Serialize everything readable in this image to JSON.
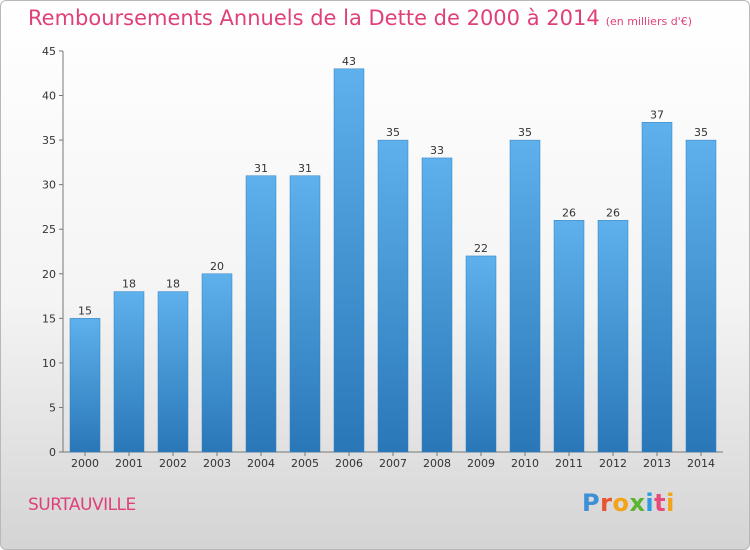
{
  "header": {
    "title": "Remboursements Annuels de la Dette de 2000 à 2014",
    "unit": "(en milliers d'€)"
  },
  "footer": {
    "commune": "SURTAUVILLE",
    "logo": {
      "letters": [
        "P",
        "r",
        "o",
        "x",
        "i",
        "t",
        "i"
      ],
      "colors": [
        "#3d8fd6",
        "#e8542e",
        "#f2a318",
        "#5cb531",
        "#2e9be0",
        "#e84a7a",
        "#f2a318"
      ]
    }
  },
  "chart_data": {
    "type": "bar",
    "title": "Remboursements Annuels de la Dette de 2000 à 2014",
    "unit": "(en milliers d'€)",
    "categories": [
      "2000",
      "2001",
      "2002",
      "2003",
      "2004",
      "2005",
      "2006",
      "2007",
      "2008",
      "2009",
      "2010",
      "2011",
      "2012",
      "2013",
      "2014"
    ],
    "values": [
      15,
      18,
      18,
      20,
      31,
      31,
      43,
      35,
      33,
      22,
      35,
      26,
      26,
      37,
      35
    ],
    "ylim": [
      0,
      45
    ],
    "yticks": [
      0,
      5,
      10,
      15,
      20,
      25,
      30,
      35,
      40,
      45
    ],
    "grid": false,
    "legend": "none",
    "bar_color": "#3c8fd4"
  }
}
